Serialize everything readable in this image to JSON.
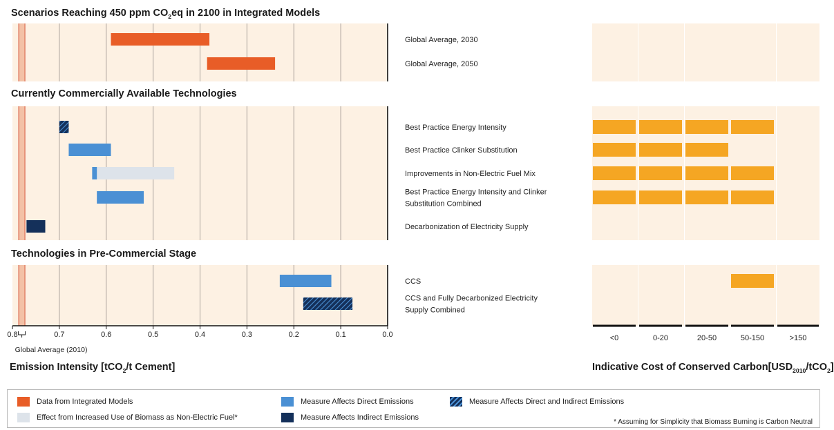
{
  "colors": {
    "panel_bg": "#fdf1e3",
    "integrated_models": "#e85d27",
    "direct": "#4a90d4",
    "indirect": "#14305a",
    "biomass": "#dde3ea",
    "global_avg_band": "#f3c1a6",
    "global_avg_line": "#d6553a",
    "cost_bar": "#f5a623"
  },
  "sections": [
    {
      "title_parts": [
        "Scenarios Reaching 450 ppm CO",
        "2",
        "eq in 2100 in Integrated Models"
      ]
    },
    {
      "title_parts": [
        "Currently Commercially Available Technologies"
      ]
    },
    {
      "title_parts": [
        "Technologies in Pre-Commercial Stage"
      ]
    }
  ],
  "chart_data": {
    "type": "bar",
    "xaxis": {
      "range": [
        0.8,
        0.0
      ],
      "ticks": [
        "0.8",
        "0.7",
        "0.6",
        "0.5",
        "0.4",
        "0.3",
        "0.2",
        "0.1",
        "0.0"
      ],
      "tick_values": [
        0.8,
        0.7,
        0.6,
        0.5,
        0.4,
        0.3,
        0.2,
        0.1,
        0.0
      ],
      "global_average_label": "Global Average (2010)",
      "global_average_value": 0.78,
      "title_parts": [
        "Emission Intensity [tCO",
        "2",
        "/t Cement]"
      ]
    },
    "rows": [
      {
        "label": [
          "Global Average, 2030"
        ],
        "section": 0,
        "bars": [
          {
            "from": 0.59,
            "to": 0.38,
            "kind": "integrated_models"
          }
        ],
        "cost": [
          false,
          false,
          false,
          false,
          false
        ]
      },
      {
        "label": [
          "Global Average, 2050"
        ],
        "section": 0,
        "bars": [
          {
            "from": 0.385,
            "to": 0.24,
            "kind": "integrated_models"
          }
        ],
        "cost": [
          false,
          false,
          false,
          false,
          false
        ]
      },
      {
        "label": [
          "Best Practice Energy Intensity"
        ],
        "section": 1,
        "bars": [
          {
            "from": 0.7,
            "to": 0.68,
            "kind": "direct_and_indirect"
          }
        ],
        "cost": [
          true,
          true,
          true,
          true,
          false
        ]
      },
      {
        "label": [
          "Best Practice Clinker Substitution"
        ],
        "section": 1,
        "bars": [
          {
            "from": 0.68,
            "to": 0.59,
            "kind": "direct"
          }
        ],
        "cost": [
          true,
          true,
          true,
          false,
          false
        ]
      },
      {
        "label": [
          "Improvements in Non-Electric Fuel Mix"
        ],
        "section": 1,
        "bars": [
          {
            "from": 0.63,
            "to": 0.455,
            "kind": "biomass"
          },
          {
            "from": 0.63,
            "to": 0.62,
            "kind": "direct"
          }
        ],
        "cost": [
          true,
          true,
          true,
          true,
          false
        ]
      },
      {
        "label": [
          "Best Practice Energy Intensity and Clinker",
          "Substitution Combined"
        ],
        "section": 1,
        "bars": [
          {
            "from": 0.62,
            "to": 0.52,
            "kind": "direct"
          }
        ],
        "cost": [
          true,
          true,
          true,
          true,
          false
        ]
      },
      {
        "label": [
          "Decarbonization of Electricity Supply"
        ],
        "section": 1,
        "bars": [
          {
            "from": 0.77,
            "to": 0.73,
            "kind": "indirect"
          }
        ],
        "cost": [
          false,
          false,
          false,
          false,
          false
        ]
      },
      {
        "label": [
          "CCS"
        ],
        "section": 2,
        "bars": [
          {
            "from": 0.23,
            "to": 0.12,
            "kind": "direct"
          }
        ],
        "cost": [
          false,
          false,
          false,
          true,
          false
        ]
      },
      {
        "label": [
          "CCS and Fully Decarbonized Electricity",
          "Supply Combined"
        ],
        "section": 2,
        "bars": [
          {
            "from": 0.18,
            "to": 0.075,
            "kind": "direct_and_indirect"
          }
        ],
        "cost": [
          false,
          false,
          false,
          false,
          false
        ]
      }
    ],
    "cost_categories": [
      "<0",
      "0-20",
      "20-50",
      "50-150",
      ">150"
    ],
    "cost_title_parts": [
      "Indicative Cost of Conserved Carbon[USD",
      "2010",
      "/tCO",
      "2",
      "]"
    ]
  },
  "legend": {
    "items": [
      {
        "label": "Data from Integrated Models",
        "kind": "integrated_models"
      },
      {
        "label": "Effect from Increased Use of Biomass as Non-Electric Fuel*",
        "kind": "biomass"
      },
      {
        "label": "Measure Affects Direct Emissions",
        "kind": "direct"
      },
      {
        "label": "Measure Affects Indirect Emissions",
        "kind": "indirect"
      },
      {
        "label": "Measure Affects Direct and Indirect Emissions",
        "kind": "direct_and_indirect"
      }
    ],
    "note": "* Assuming for Simplicity that Biomass Burning is Carbon Neutral"
  }
}
